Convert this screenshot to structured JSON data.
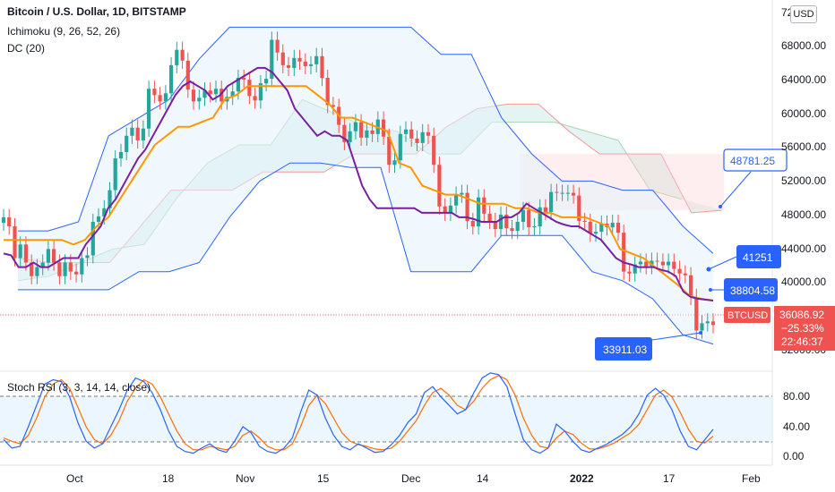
{
  "legend": {
    "title": "Bitcoin / U.S. Dollar, 1D, BITSTAMP",
    "ichimoku": "Ichimoku (9, 26, 52, 26)",
    "dc": "DC (20)",
    "stoch": "Stoch RSI (3, 3, 14, 14, close)"
  },
  "currency_badge": "USD",
  "price_axis": {
    "top_partial": "72",
    "ticks": [
      "68000.00",
      "64000.00",
      "60000.00",
      "56000.00",
      "52000.00",
      "48000.00",
      "44000.00",
      "40000.00",
      "36000.00",
      "32000.00"
    ]
  },
  "stoch_axis": {
    "ticks": [
      "80.00",
      "40.00",
      "0.00"
    ]
  },
  "time_axis": {
    "ticks": [
      "Oct",
      "18",
      "Nov",
      "15",
      "Dec",
      "14",
      "2022",
      "17",
      "Feb"
    ]
  },
  "last_price": {
    "symbol": "BTCUSD",
    "price": "36086.92",
    "change": "−25.33%",
    "countdown": "22:46:37"
  },
  "callouts": [
    {
      "id": "callout-48781",
      "text": "48781.25"
    },
    {
      "id": "callout-41251",
      "text": "41251"
    },
    {
      "id": "callout-38804",
      "text": "38804.58"
    },
    {
      "id": "callout-33911",
      "text": "33911.03"
    }
  ],
  "colors": {
    "up": "#26a69a",
    "down": "#ef5350",
    "conversion": "#7b1fa2",
    "base": "#ff9800",
    "donchian": "#2962ff",
    "callout_bg": "#2962ff",
    "stoch_k": "#2962ff",
    "stoch_d": "#ff6d00"
  },
  "chart_data": {
    "type": "candlestick",
    "symbol": "BTCUSD",
    "interval": "1D",
    "price_ylim": [
      31000,
      72000
    ],
    "stoch_ylim": [
      -10,
      100
    ],
    "closes": [
      48000,
      47000,
      43500,
      45000,
      43000,
      41500,
      42500,
      43000,
      44500,
      43000,
      41500,
      43000,
      42000,
      41700,
      43500,
      43800,
      47500,
      48100,
      49000,
      51000,
      54500,
      55200,
      57000,
      57900,
      56500,
      57800,
      62200,
      61500,
      60800,
      61700,
      64800,
      66500,
      65300,
      62100,
      60800,
      61200,
      62000,
      61600,
      62200,
      60800,
      61300,
      61900,
      63400,
      63200,
      61400,
      60900,
      62800,
      63300,
      67600,
      66200,
      64800,
      64500,
      65600,
      65200,
      64700,
      64900,
      65800,
      63400,
      60400,
      60200,
      58200,
      56300,
      57500,
      58500,
      56800,
      57600,
      57200,
      58800,
      56900,
      53800,
      54300,
      57200,
      57700,
      56700,
      56200,
      57400,
      57000,
      53800,
      49200,
      48500,
      49300,
      50500,
      50700,
      47600,
      47000,
      50200,
      48400,
      47600,
      46700,
      48300,
      46800,
      46500,
      47500,
      48800,
      46900,
      47000,
      49100,
      48600,
      50800,
      50700,
      50700,
      50700,
      50400,
      47600,
      47500,
      46200,
      46400,
      47300,
      46900,
      47400,
      46300,
      42000,
      41800,
      42800,
      43100,
      42600,
      43200,
      43100,
      42700,
      43100,
      42300,
      41800,
      41600,
      39200,
      35500,
      36300,
      36500,
      36100
    ],
    "conversion_line": [
      44000,
      43800,
      42500,
      42500,
      43000,
      42500,
      42500,
      43000,
      43500,
      43500,
      43500,
      45000,
      46000,
      47000,
      49000,
      50000,
      51500,
      53000,
      54500,
      55500,
      57000,
      58500,
      60000,
      61500,
      62500,
      63000,
      62500,
      62000,
      61000,
      61500,
      62500,
      63000,
      63500,
      64000,
      64500,
      64500,
      64000,
      63000,
      62000,
      60000,
      59000,
      58000,
      57000,
      57500,
      57000,
      57000,
      56500,
      54000,
      51500,
      50000,
      49000,
      49000,
      49000,
      49000,
      49000,
      49000,
      48500,
      48500,
      48500,
      48500,
      48500,
      48000,
      48000,
      47800,
      47500,
      47500,
      47500,
      48000,
      48000,
      48500,
      49500,
      49000,
      48500,
      48000,
      47500,
      47200,
      47000,
      47000,
      46500,
      46000,
      45500,
      44500,
      43500,
      43000,
      42800,
      42500,
      42500,
      42500,
      42200,
      42000,
      41500,
      39800,
      39200,
      39000,
      38900,
      38800
    ],
    "base_line": [
      45500,
      45500,
      45500,
      45500,
      45500,
      45500,
      45000,
      45500,
      47000,
      48000,
      50000,
      52000,
      54000,
      56000,
      57000,
      58000,
      58000,
      58500,
      59000,
      61000,
      61500,
      62500,
      62500,
      62500,
      62500,
      62500,
      62500,
      61500,
      60500,
      59000,
      59000,
      58500,
      58000,
      57500,
      54000,
      53500,
      51500,
      51000,
      50500,
      50500,
      50000,
      49500,
      49500,
      49500,
      49000,
      49000,
      48500,
      48500,
      48000,
      48000,
      48000,
      47500,
      47000,
      44500,
      44000,
      43500,
      42500,
      41500,
      40500,
      39300,
      39000,
      38800
    ],
    "donchian": {
      "upper": [
        46500,
        46500,
        47500,
        57000,
        59000,
        61000,
        65500,
        69000,
        69000,
        69000,
        69000,
        69000,
        69000,
        69000,
        66000,
        66000,
        59000,
        55000,
        52000,
        52000,
        51000,
        51000,
        47000,
        44000
      ],
      "lower": [
        40000,
        40000,
        40000,
        40000,
        42000,
        42000,
        43000,
        48000,
        52000,
        54000,
        54000,
        53500,
        53500,
        42000,
        42000,
        42000,
        46000,
        46000,
        46000,
        42000,
        41000,
        39000,
        35000,
        34000
      ]
    },
    "ichimoku_cloud": {
      "span_a": [
        41000,
        41500,
        43000,
        44500,
        45000,
        50000,
        54000,
        56000,
        56000,
        61000,
        59500,
        58000,
        57500,
        55000,
        55000,
        58500,
        58500,
        58500,
        57500,
        56500,
        51000,
        50000
      ],
      "span_b": [
        43500,
        43000,
        43000,
        43000,
        47000,
        51000,
        51000,
        51000,
        53000,
        53000,
        53000,
        55000,
        55000,
        55000,
        58000,
        60000,
        60500,
        60500,
        57500,
        55000,
        55000,
        55000,
        48500,
        48781
      ]
    },
    "stoch_rsi": {
      "k": [
        20,
        10,
        12,
        35,
        60,
        85,
        90,
        88,
        70,
        40,
        18,
        10,
        15,
        35,
        55,
        78,
        92,
        88,
        75,
        55,
        30,
        12,
        6,
        4,
        10,
        15,
        8,
        5,
        18,
        35,
        28,
        12,
        6,
        4,
        10,
        22,
        52,
        78,
        72,
        45,
        25,
        12,
        8,
        15,
        10,
        5,
        6,
        14,
        25,
        40,
        50,
        75,
        82,
        70,
        60,
        50,
        55,
        75,
        92,
        98,
        96,
        82,
        50,
        20,
        8,
        4,
        10,
        38,
        30,
        18,
        8,
        5,
        10,
        14,
        20,
        26,
        35,
        50,
        72,
        80,
        72,
        55,
        30,
        12,
        8,
        20,
        32
      ],
      "d": [
        22,
        18,
        15,
        25,
        45,
        70,
        85,
        90,
        80,
        58,
        35,
        20,
        15,
        25,
        42,
        65,
        80,
        90,
        85,
        70,
        50,
        30,
        15,
        8,
        8,
        12,
        10,
        8,
        12,
        25,
        30,
        22,
        12,
        8,
        8,
        15,
        35,
        60,
        72,
        62,
        45,
        28,
        18,
        14,
        12,
        9,
        8,
        10,
        18,
        30,
        42,
        60,
        75,
        80,
        72,
        60,
        55,
        65,
        80,
        90,
        95,
        90,
        72,
        45,
        25,
        12,
        10,
        22,
        30,
        26,
        16,
        9,
        9,
        12,
        16,
        22,
        28,
        38,
        55,
        72,
        78,
        70,
        52,
        32,
        18,
        16,
        24
      ]
    },
    "annotations": [
      "48781.25",
      "41251",
      "38804.58",
      "33911.03"
    ],
    "grid": true
  }
}
